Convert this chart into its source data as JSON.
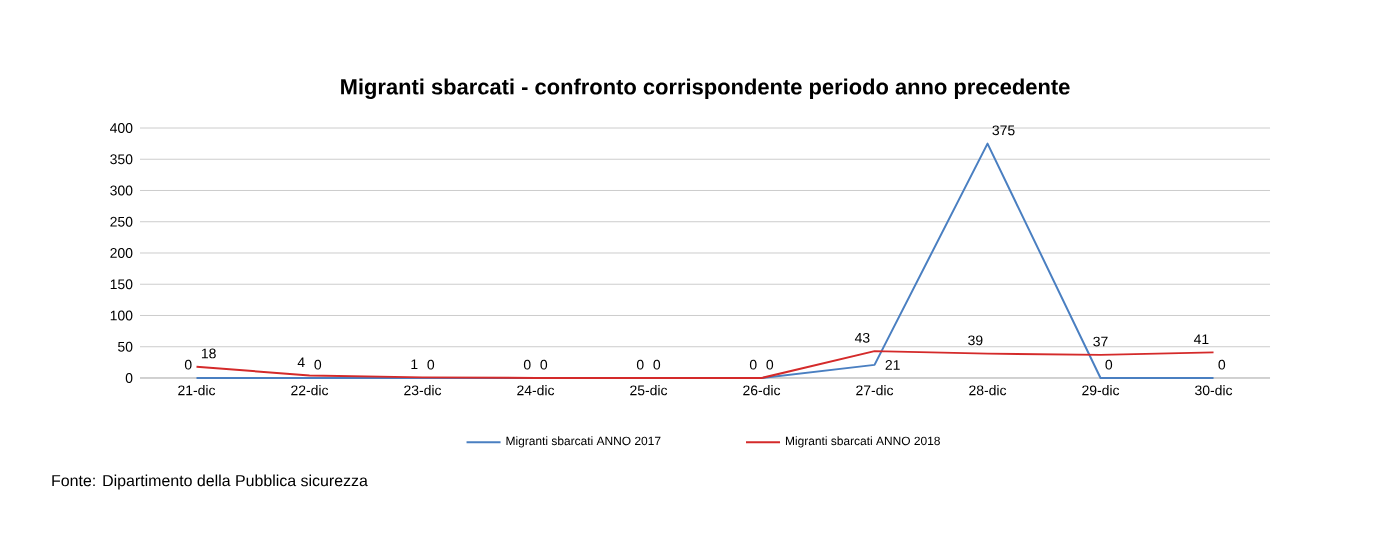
{
  "chart_data": {
    "type": "line",
    "title": "Migranti sbarcati - confronto corrispondente periodo anno precedente",
    "categories": [
      "21-dic",
      "22-dic",
      "23-dic",
      "24-dic",
      "25-dic",
      "26-dic",
      "27-dic",
      "28-dic",
      "29-dic",
      "30-dic"
    ],
    "series": [
      {
        "name": "Migranti sbarcati ANNO 2017",
        "color": "#4a7fc1",
        "values": [
          0,
          0,
          0,
          0,
          0,
          0,
          21,
          375,
          0,
          0
        ]
      },
      {
        "name": "Migranti sbarcati ANNO 2018",
        "color": "#d42a2a",
        "values": [
          18,
          4,
          1,
          0,
          0,
          0,
          43,
          39,
          37,
          41
        ]
      }
    ],
    "ylim": [
      0,
      400
    ],
    "yticks": [
      0,
      50,
      100,
      150,
      200,
      250,
      300,
      350,
      400
    ],
    "grid": "y",
    "legend": "bottom",
    "data_labels": true,
    "marker": "none",
    "line_style": "solid",
    "annotations": [
      "Fonte: Dipartimento della Pubblica sicurezza"
    ]
  }
}
